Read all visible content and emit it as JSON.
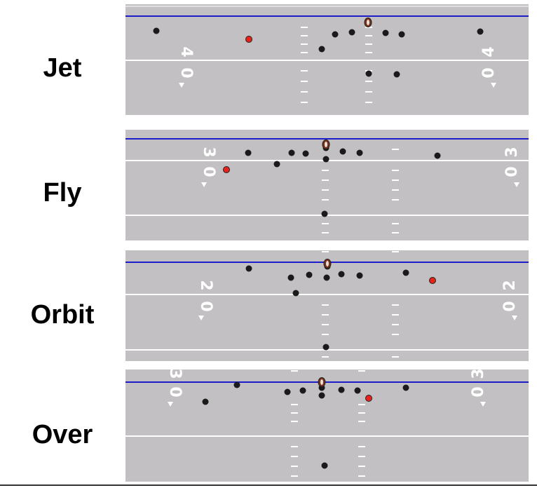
{
  "colors": {
    "field": "#c2c0c2",
    "scrimmage_line": "#1c1cc8",
    "field_lines": "#ffffff",
    "player": "#1a1a1a",
    "motion_player": "#e8221b",
    "ball": "#7a3118"
  },
  "plays": [
    {
      "label": "Jet",
      "yard_numbers": [
        "4",
        "0",
        "4",
        "0"
      ]
    },
    {
      "label": "Fly",
      "yard_numbers": [
        "3",
        "0",
        "3",
        "0"
      ]
    },
    {
      "label": "Orbit",
      "yard_numbers": [
        "2",
        "0",
        "2",
        "0"
      ]
    },
    {
      "label": "Over",
      "yard_numbers": [
        "3",
        "0",
        "3",
        "0"
      ]
    }
  ]
}
